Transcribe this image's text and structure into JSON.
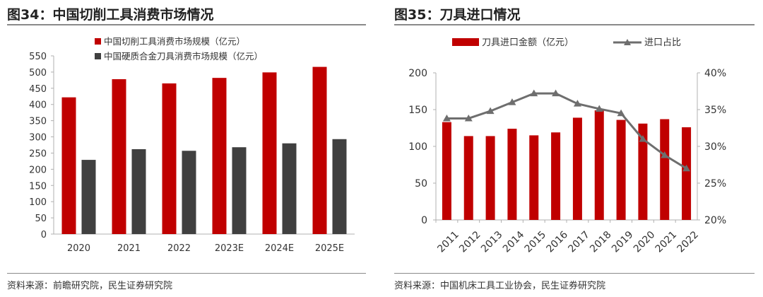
{
  "left": {
    "title": "图34：中国切削工具消费市场情况",
    "source": "资料来源：前瞻研究院，民生证券研究院",
    "chart_data": {
      "type": "bar",
      "categories": [
        "2020",
        "2021",
        "2022",
        "2023E",
        "2024E",
        "2025E"
      ],
      "series": [
        {
          "name": "中国切削工具消费市场规模（亿元）",
          "color": "#c00000",
          "values": [
            422,
            478,
            465,
            482,
            499,
            516
          ]
        },
        {
          "name": "中国硬质合金刀具消费市场规模（亿元）",
          "color": "#404040",
          "values": [
            229,
            262,
            257,
            268,
            280,
            293
          ]
        }
      ],
      "ylim": [
        0,
        550
      ],
      "yticks": [
        0,
        50,
        100,
        150,
        200,
        250,
        300,
        350,
        400,
        450,
        500,
        550
      ],
      "legend": "top",
      "grid": false
    }
  },
  "right": {
    "title": "图35：刀具进口情况",
    "source": "资料来源：中国机床工具工业协会，民生证券研究院",
    "chart_data": {
      "type": "bar",
      "categories": [
        "2011",
        "2012",
        "2013",
        "2014",
        "2015",
        "2016",
        "2017",
        "2018",
        "2019",
        "2020",
        "2021",
        "2022"
      ],
      "series": [
        {
          "name": "刀具进口金额（亿元）",
          "type": "bar",
          "axis": "left",
          "color": "#c00000",
          "values": [
            133,
            114,
            114,
            124,
            115,
            119,
            139,
            149,
            136,
            131,
            137,
            126
          ]
        },
        {
          "name": "进口占比",
          "type": "line",
          "axis": "right",
          "color": "#6e6e6e",
          "marker": "triangle",
          "values": [
            0.338,
            0.338,
            0.348,
            0.36,
            0.372,
            0.372,
            0.358,
            0.351,
            0.345,
            0.31,
            0.288,
            0.27
          ]
        }
      ],
      "ylim_left": [
        0,
        200
      ],
      "yticks_left": [
        0,
        50,
        100,
        150,
        200
      ],
      "ylim_right": [
        0.2,
        0.4
      ],
      "yticks_right": [
        "20%",
        "25%",
        "30%",
        "35%",
        "40%"
      ],
      "legend": "top",
      "grid": false
    }
  }
}
